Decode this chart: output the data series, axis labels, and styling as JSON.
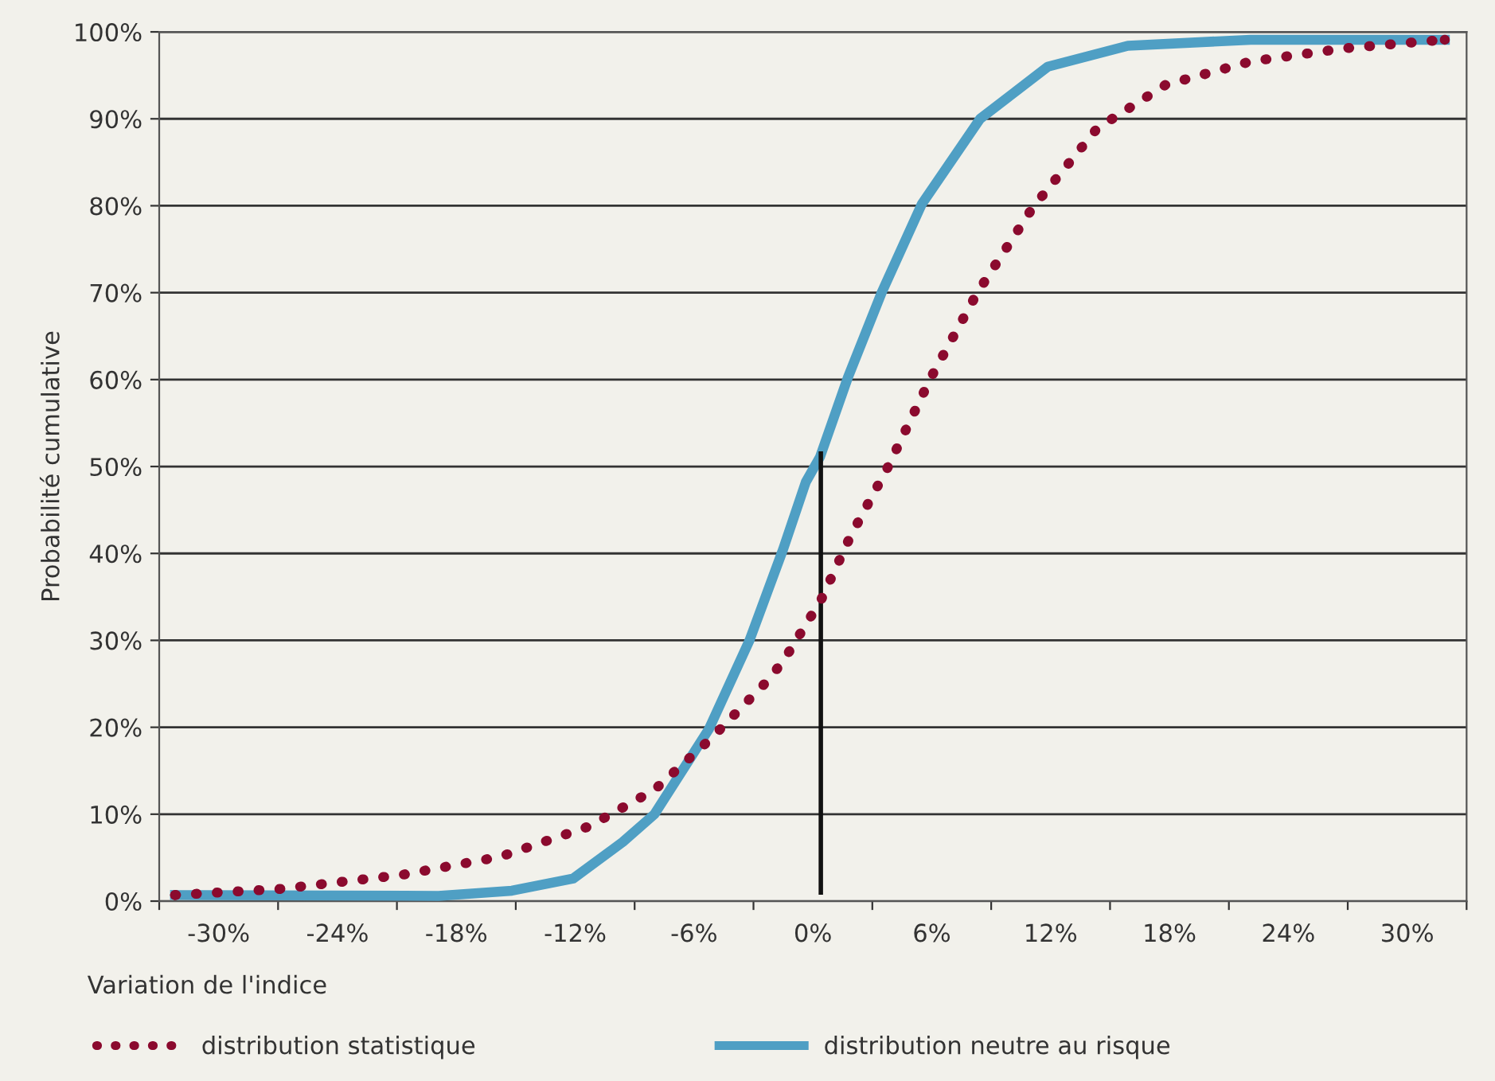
{
  "chart_data": {
    "type": "line",
    "xlabel": "Variation de l'indice",
    "ylabel": "Probabilité cumulative",
    "xlim": [
      -33,
      33
    ],
    "ylim": [
      0,
      100
    ],
    "xticks": [
      {
        "value": -33,
        "label": null
      },
      {
        "value": -30,
        "label": "-30%"
      },
      {
        "value": -27,
        "label": null
      },
      {
        "value": -24,
        "label": "-24%"
      },
      {
        "value": -21,
        "label": null
      },
      {
        "value": -18,
        "label": "-18%"
      },
      {
        "value": -15,
        "label": null
      },
      {
        "value": -12,
        "label": "-12%"
      },
      {
        "value": -9,
        "label": null
      },
      {
        "value": -6,
        "label": "-6%"
      },
      {
        "value": -3,
        "label": null
      },
      {
        "value": 0,
        "label": "0%"
      },
      {
        "value": 3,
        "label": null
      },
      {
        "value": 6,
        "label": "6%"
      },
      {
        "value": 9,
        "label": null
      },
      {
        "value": 12,
        "label": "12%"
      },
      {
        "value": 15,
        "label": null
      },
      {
        "value": 18,
        "label": "18%"
      },
      {
        "value": 21,
        "label": null
      },
      {
        "value": 24,
        "label": "24%"
      },
      {
        "value": 27,
        "label": null
      },
      {
        "value": 30,
        "label": "30%"
      },
      {
        "value": 33,
        "label": null
      }
    ],
    "yticks": [
      {
        "value": 0,
        "label": "0%"
      },
      {
        "value": 10,
        "label": "10%"
      },
      {
        "value": 20,
        "label": "20%"
      },
      {
        "value": 30,
        "label": "30%"
      },
      {
        "value": 40,
        "label": "40%"
      },
      {
        "value": 50,
        "label": "50%"
      },
      {
        "value": 60,
        "label": "60%"
      },
      {
        "value": 70,
        "label": "70%"
      },
      {
        "value": 80,
        "label": "80%"
      },
      {
        "value": 90,
        "label": "90%"
      },
      {
        "value": 100,
        "label": "100%"
      }
    ],
    "grid": "y",
    "legend": "bottom",
    "marker": "none",
    "series": [
      {
        "name": "distribution statistique",
        "color": "#8b0a2e",
        "line_style": "dotted",
        "x": [
          -32.2,
          -26.9,
          -20.8,
          -15.8,
          -11.3,
          -8.0,
          -5.1,
          -2.1,
          -1.2,
          0.4,
          1.9,
          3.8,
          5.95,
          8.3,
          11.1,
          14.35,
          17.8,
          22.1,
          26.8,
          31.9
        ],
        "values": [
          0.7,
          1.4,
          3.0,
          5.1,
          8.6,
          12.8,
          18.8,
          25.8,
          28.7,
          34.6,
          42,
          50,
          60.2,
          70,
          79.8,
          88.9,
          93.9,
          96.6,
          98.1,
          99.1
        ]
      },
      {
        "name": "distribution neutre au risque",
        "color": "#4f9fc4",
        "line_style": "solid",
        "x": [
          -32.2,
          -18.9,
          -15.2,
          -12.1,
          -9.6,
          -8.0,
          -5.25,
          -3.2,
          -1.5,
          -0.36,
          0.36,
          1.76,
          3.47,
          5.5,
          8.44,
          11.86,
          15.9,
          22.1,
          31.9
        ],
        "values": [
          0.7,
          0.6,
          1.2,
          2.6,
          6.8,
          10,
          19.8,
          30,
          40.5,
          48.2,
          51.1,
          60.2,
          70,
          80.2,
          90,
          96,
          98.4,
          99.1,
          99.1
        ]
      },
      {
        "color": "#111111",
        "line_style": "solid",
        "x": [
          0.4,
          0.4
        ],
        "values": [
          1,
          51.5
        ]
      }
    ]
  }
}
